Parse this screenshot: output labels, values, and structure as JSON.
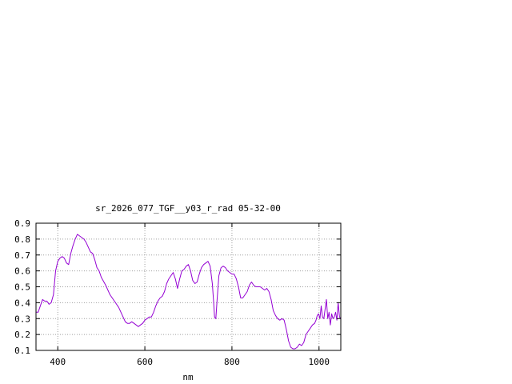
{
  "chart_data": {
    "type": "line",
    "title": "sr_2026_077_TGF__y03_r_rad 05-32-00",
    "xlabel": "nm",
    "ylabel": "",
    "xlim": [
      350,
      1050
    ],
    "ylim": [
      0.1,
      0.9
    ],
    "x_ticks": [
      400,
      600,
      800,
      1000
    ],
    "y_ticks": [
      0.1,
      0.2,
      0.3,
      0.4,
      0.5,
      0.6,
      0.7,
      0.8,
      0.9
    ],
    "x_tick_labels": [
      "400",
      "600",
      "800",
      "1000"
    ],
    "y_tick_labels": [
      "0.1",
      "0.2",
      "0.3",
      "0.4",
      "0.5",
      "0.6",
      "0.7",
      "0.8",
      "0.9"
    ],
    "grid": true,
    "line_color": "#9400d3",
    "series": [
      {
        "x": [
          350,
          355,
          360,
          365,
          370,
          375,
          380,
          385,
          390,
          395,
          400,
          405,
          410,
          415,
          420,
          425,
          430,
          435,
          440,
          445,
          450,
          455,
          460,
          465,
          470,
          475,
          480,
          485,
          490,
          495,
          500,
          510,
          520,
          530,
          540,
          550,
          555,
          560,
          565,
          570,
          575,
          580,
          585,
          590,
          595,
          600,
          605,
          610,
          615,
          620,
          625,
          630,
          635,
          640,
          645,
          650,
          655,
          660,
          665,
          670,
          675,
          680,
          685,
          690,
          695,
          700,
          705,
          710,
          715,
          720,
          725,
          730,
          735,
          740,
          745,
          750,
          755,
          758,
          760,
          763,
          766,
          770,
          775,
          780,
          785,
          790,
          795,
          800,
          805,
          810,
          815,
          820,
          825,
          830,
          835,
          840,
          845,
          850,
          855,
          860,
          865,
          870,
          875,
          880,
          885,
          890,
          895,
          900,
          905,
          910,
          915,
          920,
          925,
          930,
          935,
          940,
          945,
          950,
          955,
          960,
          965,
          970,
          975,
          980,
          985,
          990,
          993,
          996,
          999,
          1002,
          1005,
          1008,
          1011,
          1014,
          1017,
          1020,
          1023,
          1026,
          1029,
          1032,
          1035,
          1038,
          1041,
          1044,
          1047,
          1050
        ],
        "y": [
          0.34,
          0.34,
          0.38,
          0.42,
          0.41,
          0.41,
          0.39,
          0.4,
          0.45,
          0.6,
          0.66,
          0.68,
          0.69,
          0.68,
          0.65,
          0.64,
          0.71,
          0.76,
          0.8,
          0.83,
          0.82,
          0.81,
          0.8,
          0.78,
          0.75,
          0.72,
          0.71,
          0.67,
          0.62,
          0.6,
          0.56,
          0.51,
          0.45,
          0.41,
          0.37,
          0.31,
          0.28,
          0.27,
          0.27,
          0.28,
          0.27,
          0.26,
          0.25,
          0.26,
          0.27,
          0.29,
          0.3,
          0.31,
          0.31,
          0.34,
          0.38,
          0.41,
          0.43,
          0.44,
          0.47,
          0.52,
          0.55,
          0.57,
          0.59,
          0.55,
          0.49,
          0.55,
          0.6,
          0.61,
          0.63,
          0.64,
          0.6,
          0.54,
          0.52,
          0.53,
          0.58,
          0.62,
          0.64,
          0.65,
          0.66,
          0.63,
          0.52,
          0.4,
          0.31,
          0.3,
          0.42,
          0.57,
          0.62,
          0.63,
          0.62,
          0.6,
          0.59,
          0.58,
          0.58,
          0.55,
          0.5,
          0.43,
          0.43,
          0.45,
          0.47,
          0.51,
          0.53,
          0.51,
          0.5,
          0.5,
          0.5,
          0.49,
          0.48,
          0.49,
          0.47,
          0.42,
          0.35,
          0.32,
          0.3,
          0.29,
          0.3,
          0.29,
          0.23,
          0.16,
          0.12,
          0.11,
          0.11,
          0.12,
          0.14,
          0.13,
          0.15,
          0.2,
          0.22,
          0.24,
          0.26,
          0.27,
          0.29,
          0.32,
          0.33,
          0.3,
          0.38,
          0.31,
          0.3,
          0.36,
          0.42,
          0.3,
          0.34,
          0.26,
          0.33,
          0.3,
          0.31,
          0.34,
          0.29,
          0.4,
          0.31,
          0.3
        ]
      }
    ]
  }
}
